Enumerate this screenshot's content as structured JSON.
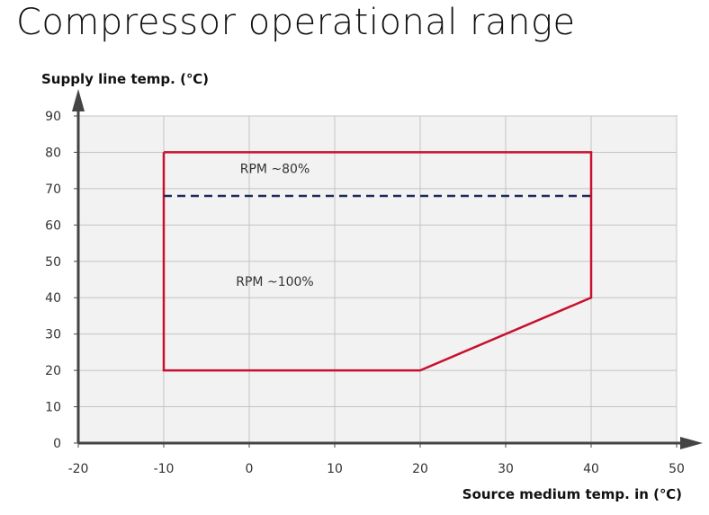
{
  "chart_data": {
    "type": "area",
    "title": "Compressor operational range",
    "xlabel": "Source medium temp. in (℃)",
    "ylabel": "Supply line temp. (℃)",
    "xlim": [
      -20,
      50
    ],
    "ylim": [
      0,
      90
    ],
    "xticks": [
      -20,
      -10,
      0,
      10,
      20,
      30,
      40,
      50
    ],
    "yticks": [
      0,
      10,
      20,
      30,
      40,
      50,
      60,
      70,
      80,
      90
    ],
    "grid": true,
    "series": [
      {
        "kind": "operating-envelope",
        "color": "#c8102e",
        "x": [
          -10,
          40,
          40,
          20,
          -10,
          -10
        ],
        "y": [
          80,
          80,
          40,
          20,
          20,
          80
        ]
      },
      {
        "kind": "dashed-limit",
        "color": "#1c2a5a",
        "x": [
          -10,
          40
        ],
        "y": [
          68,
          68
        ]
      }
    ],
    "annotations": [
      {
        "text": "RPM ~80%",
        "x": 3,
        "y": 75.5
      },
      {
        "text": "RPM ~100%",
        "x": 3,
        "y": 44.5
      }
    ]
  },
  "colors": {
    "plot_background": "#f2f2f2",
    "grid": "#c4c4c4",
    "axis": "#444444",
    "envelope": "#c8102e",
    "dashed": "#1c2a5a"
  }
}
